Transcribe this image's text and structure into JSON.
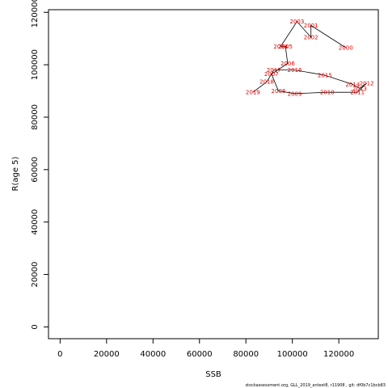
{
  "chart_data": {
    "type": "line",
    "title": "",
    "xlabel": "SSB",
    "ylabel": "R(age 5)",
    "xlim": [
      -5000,
      137000
    ],
    "ylim": [
      -4500,
      121000
    ],
    "xticks": [
      0,
      20000,
      40000,
      60000,
      80000,
      100000,
      120000
    ],
    "yticks": [
      0,
      20000,
      40000,
      60000,
      80000,
      100000,
      120000
    ],
    "x_tick_labels": [
      "0",
      "20000",
      "40000",
      "60000",
      "80000",
      "100000",
      "120000"
    ],
    "y_tick_labels": [
      "0",
      "20000",
      "40000",
      "60000",
      "80000",
      "100000",
      "120000"
    ],
    "grid": false,
    "line_color": "#000000",
    "label_color": "#e00000",
    "points": [
      {
        "year": "2000",
        "x": 123000,
        "y": 106500
      },
      {
        "year": "2001",
        "x": 108000,
        "y": 115000
      },
      {
        "year": "2002",
        "x": 108000,
        "y": 110500
      },
      {
        "year": "2003",
        "x": 102000,
        "y": 116500
      },
      {
        "year": "2004",
        "x": 95000,
        "y": 107000
      },
      {
        "year": "2005",
        "x": 97000,
        "y": 107000
      },
      {
        "year": "2006",
        "x": 98000,
        "y": 100500
      },
      {
        "year": "2007",
        "x": 91000,
        "y": 96500
      },
      {
        "year": "2008",
        "x": 94000,
        "y": 90000
      },
      {
        "year": "2009",
        "x": 101000,
        "y": 89000
      },
      {
        "year": "2010",
        "x": 115000,
        "y": 89500
      },
      {
        "year": "2011",
        "x": 128000,
        "y": 89500
      },
      {
        "year": "2012",
        "x": 132000,
        "y": 93000
      },
      {
        "year": "2013",
        "x": 129000,
        "y": 91000
      },
      {
        "year": "2014",
        "x": 126000,
        "y": 92500
      },
      {
        "year": "2015",
        "x": 114000,
        "y": 96000
      },
      {
        "year": "2016",
        "x": 101000,
        "y": 98000
      },
      {
        "year": "2017",
        "x": 92000,
        "y": 98000
      },
      {
        "year": "2018",
        "x": 89000,
        "y": 93500
      },
      {
        "year": "2019",
        "x": 83000,
        "y": 89500
      }
    ]
  },
  "footer": "stockassessment.org, GLL_2019_antest8, r11908 , git: df0b7c1bcb83"
}
